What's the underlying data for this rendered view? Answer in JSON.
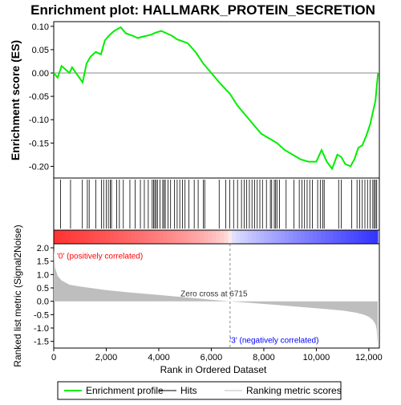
{
  "chart_data": {
    "type": "line",
    "title": "Enrichment plot: HALLMARK_PROTEIN_SECRETION",
    "x_axis": {
      "label": "Rank in Ordered Dataset",
      "range": [
        0,
        12400
      ],
      "ticks": [
        0,
        2000,
        4000,
        6000,
        8000,
        10000,
        12000
      ],
      "tick_labels": [
        "0",
        "2,000",
        "4,000",
        "6,000",
        "8,000",
        "10,000",
        "12,000"
      ]
    },
    "es_panel": {
      "ylabel": "Enrichment score (ES)",
      "ylim": [
        -0.225,
        0.11
      ],
      "yticks": [
        0.1,
        0.05,
        0.0,
        -0.05,
        -0.1,
        -0.15,
        -0.2
      ],
      "ytick_labels": [
        "0.10",
        "0.05",
        "0.00",
        "-0.05",
        "-0.10",
        "-0.15",
        "-0.20"
      ],
      "color": "#00ee00",
      "x": [
        0,
        150,
        300,
        600,
        700,
        1100,
        1250,
        1400,
        1600,
        1800,
        1950,
        2100,
        2300,
        2550,
        2750,
        3000,
        3200,
        3400,
        3700,
        3900,
        4100,
        4300,
        4500,
        4700,
        4900,
        5100,
        5400,
        5700,
        6000,
        6300,
        6715,
        7000,
        7300,
        7600,
        7900,
        8200,
        8500,
        8800,
        9100,
        9400,
        9700,
        10000,
        10200,
        10400,
        10600,
        10800,
        10950,
        11100,
        11300,
        11450,
        11600,
        11750,
        11900,
        12050,
        12150,
        12250,
        12300,
        12350
      ],
      "y": [
        0.0,
        -0.01,
        0.015,
        0.0,
        0.012,
        -0.02,
        0.02,
        0.035,
        0.045,
        0.04,
        0.07,
        0.08,
        0.09,
        0.098,
        0.085,
        0.08,
        0.075,
        0.078,
        0.082,
        0.087,
        0.09,
        0.085,
        0.08,
        0.072,
        0.068,
        0.064,
        0.045,
        0.02,
        0.0,
        -0.02,
        -0.045,
        -0.07,
        -0.09,
        -0.11,
        -0.13,
        -0.14,
        -0.15,
        -0.165,
        -0.175,
        -0.185,
        -0.19,
        -0.19,
        -0.165,
        -0.19,
        -0.205,
        -0.175,
        -0.18,
        -0.195,
        -0.2,
        -0.185,
        -0.16,
        -0.155,
        -0.135,
        -0.11,
        -0.085,
        -0.06,
        -0.03,
        0.0
      ]
    },
    "hits": [
      260,
      640,
      1090,
      1280,
      1350,
      1600,
      1820,
      1900,
      2000,
      2080,
      2150,
      2200,
      2400,
      2500,
      2650,
      2900,
      3100,
      3300,
      3450,
      3600,
      3750,
      3800,
      3850,
      3900,
      3950,
      4050,
      4150,
      4200,
      4250,
      4350,
      4450,
      4600,
      4700,
      4800,
      4900,
      5000,
      5150,
      5350,
      5500,
      5700,
      5750,
      6300,
      6550,
      6700,
      6850,
      7000,
      7150,
      7250,
      7350,
      7450,
      7550,
      7650,
      7750,
      7850,
      7950,
      8100,
      8250,
      8300,
      8400,
      8450,
      8500,
      8600,
      8850,
      9150,
      9350,
      9450,
      9550,
      9650,
      9750,
      9850,
      10050,
      10150,
      10250,
      10300,
      10850,
      10950,
      11350,
      11550,
      11650,
      11750,
      11850,
      11950,
      12050,
      12150,
      12200,
      12250,
      12300
    ],
    "ranked_metric_panel": {
      "ylabel": "Ranked list metric (Signal2Noise)",
      "ylim": [
        -1.75,
        2.15
      ],
      "yticks": [
        2.0,
        1.5,
        1.0,
        0.5,
        0.0,
        -0.5,
        -1.0,
        -1.5
      ],
      "ytick_labels": [
        "2.0",
        "1.5",
        "1.0",
        "0.5",
        "0.0",
        "-0.5",
        "-1.0",
        "-1.5"
      ],
      "fill_color": "#bebebe",
      "x": [
        0,
        50,
        150,
        300,
        600,
        1000,
        2000,
        3000,
        4000,
        5000,
        6000,
        6715,
        7500,
        8500,
        9500,
        10500,
        11000,
        11500,
        11800,
        12000,
        12150,
        12250,
        12300,
        12340
      ],
      "values": [
        1.95,
        1.25,
        0.95,
        0.78,
        0.62,
        0.55,
        0.42,
        0.32,
        0.24,
        0.15,
        0.06,
        0.0,
        -0.06,
        -0.14,
        -0.22,
        -0.3,
        -0.35,
        -0.42,
        -0.5,
        -0.58,
        -0.7,
        -0.85,
        -1.05,
        -1.65
      ],
      "zero_cross_label": "Zero cross at 6715",
      "zero_cross_rank": 6715,
      "positive_label": "'0' (positively correlated)",
      "negative_label": "'3' (negatively correlated)",
      "positive_color": "#ff0000",
      "negative_color": "#0000ff"
    },
    "legend": {
      "placement": "bottom",
      "entries": [
        {
          "label": "Enrichment profile",
          "color": "#00ee00"
        },
        {
          "label": "Hits",
          "color": "#000000"
        },
        {
          "label": "Ranking metric scores",
          "color": "#bebebe"
        }
      ]
    }
  }
}
